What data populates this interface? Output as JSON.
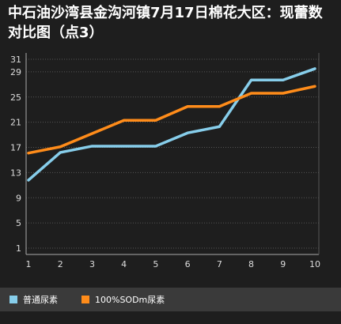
{
  "chart_data": {
    "type": "line",
    "title": "中石油沙湾县金沟河镇7月17日棉花大区：现蕾数对比图（点3）",
    "x": [
      1,
      2,
      3,
      4,
      5,
      6,
      7,
      8,
      9,
      10
    ],
    "x_tick_labels": [
      "1",
      "2",
      "3",
      "4",
      "5",
      "6",
      "7",
      "8",
      "9",
      "10"
    ],
    "y_ticks": [
      1,
      5,
      9,
      13,
      17,
      21,
      25,
      29,
      31
    ],
    "y_tick_labels": [
      "1",
      "5",
      "9",
      "13",
      "17",
      "21",
      "25",
      "29",
      "31"
    ],
    "ylim": [
      0,
      32
    ],
    "xlim": [
      1,
      10
    ],
    "grid": true,
    "legend_position": "bottom-left",
    "series": [
      {
        "name": "普通尿素",
        "color": "#87ceeb",
        "values": [
          11.8,
          16.2,
          17.2,
          17.2,
          17.2,
          19.3,
          20.3,
          27.7,
          27.7,
          29.5
        ]
      },
      {
        "name": "100%SODm尿素",
        "color": "#ff8c1a",
        "values": [
          16.1,
          17.1,
          19.2,
          21.3,
          21.3,
          23.5,
          23.5,
          25.6,
          25.6,
          26.7
        ]
      }
    ]
  }
}
